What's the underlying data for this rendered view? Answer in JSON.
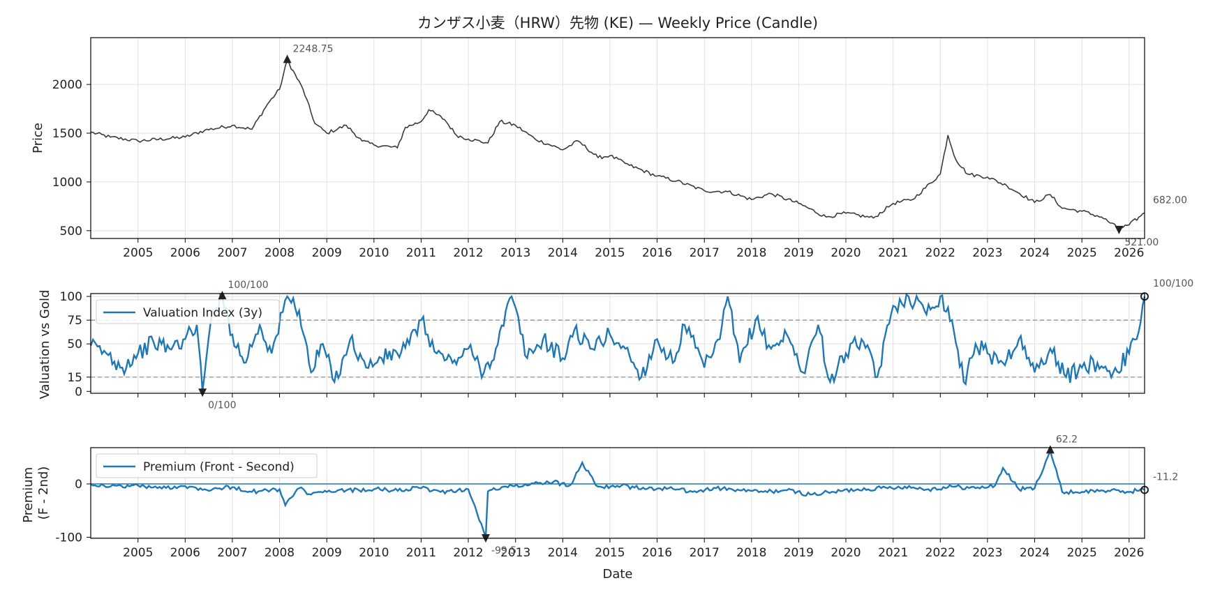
{
  "chart_data": [
    {
      "type": "line",
      "subtype": "candlestick",
      "title": "カンザス小麦（HRW）先物 (KE) — Weekly Price (Candle)",
      "xlabel": "",
      "ylabel": "Price",
      "ylim": [
        420,
        2480
      ],
      "xlim": [
        "2004-01-01",
        "2026-05-01"
      ],
      "y_ticks": [
        "500",
        "1000",
        "1500",
        "2000"
      ],
      "x_ticks": [
        "2005",
        "2006",
        "2007",
        "2008",
        "2009",
        "2010",
        "2011",
        "2012",
        "2013",
        "2014",
        "2015",
        "2016",
        "2017",
        "2018",
        "2019",
        "2020",
        "2021",
        "2022",
        "2023",
        "2024",
        "2025",
        "2026"
      ],
      "grid": true,
      "x": [
        "2004-01-01",
        "2004-06-01",
        "2005-01-01",
        "2006-01-01",
        "2006-06-01",
        "2007-01-01",
        "2007-06-01",
        "2007-10-01",
        "2008-01-01",
        "2008-03-01",
        "2008-07-01",
        "2008-10-01",
        "2009-01-01",
        "2009-06-01",
        "2009-10-01",
        "2010-01-01",
        "2010-07-01",
        "2010-09-01",
        "2011-01-01",
        "2011-03-01",
        "2011-07-01",
        "2011-10-01",
        "2012-01-01",
        "2012-06-01",
        "2012-09-01",
        "2013-01-01",
        "2013-06-01",
        "2014-01-01",
        "2014-05-01",
        "2014-10-01",
        "2015-01-01",
        "2015-06-01",
        "2016-01-01",
        "2016-06-01",
        "2017-01-01",
        "2017-07-01",
        "2018-01-01",
        "2018-06-01",
        "2019-01-01",
        "2019-08-01",
        "2020-01-01",
        "2020-08-01",
        "2021-01-01",
        "2021-06-01",
        "2022-01-01",
        "2022-03-01",
        "2022-05-01",
        "2022-08-01",
        "2023-01-01",
        "2023-06-01",
        "2024-01-01",
        "2024-05-01",
        "2024-08-01",
        "2025-01-01",
        "2025-06-01",
        "2025-10-15",
        "2026-01-01",
        "2026-04-01",
        "2026-05-01"
      ],
      "values": [
        1510,
        1460,
        1420,
        1460,
        1530,
        1580,
        1540,
        1800,
        1950,
        2248.75,
        1950,
        1600,
        1500,
        1580,
        1420,
        1380,
        1350,
        1560,
        1620,
        1740,
        1640,
        1480,
        1440,
        1400,
        1620,
        1580,
        1440,
        1330,
        1420,
        1250,
        1270,
        1170,
        1060,
        1010,
        910,
        900,
        820,
        880,
        780,
        640,
        680,
        630,
        780,
        820,
        1080,
        1480,
        1230,
        1080,
        1050,
        960,
        790,
        870,
        730,
        700,
        640,
        521,
        560,
        650,
        682
      ],
      "annotations": [
        {
          "label": "2248.75",
          "x": "2008-03-01",
          "y": 2248.75,
          "marker": "up-triangle"
        },
        {
          "label": "521.00",
          "x": "2025-10-15",
          "y": 521,
          "marker": "down-triangle"
        },
        {
          "label": "682.00",
          "x": "2026-05-01",
          "y": 682,
          "marker": "none"
        }
      ]
    },
    {
      "type": "line",
      "title": "",
      "xlabel": "",
      "ylabel": "Valuation vs Gold",
      "ylim": [
        -2,
        103
      ],
      "xlim": [
        "2004-01-01",
        "2026-05-01"
      ],
      "y_ticks": [
        "0",
        "15",
        "50",
        "75",
        "100"
      ],
      "reference_lines": [
        15,
        75
      ],
      "legend": {
        "placement": "top-left",
        "entries": [
          "Valuation Index (3y)"
        ]
      },
      "grid": true,
      "series": [
        {
          "name": "Valuation Index (3y)",
          "x": [
            "2004-01-01",
            "2004-05-01",
            "2004-09-01",
            "2005-01-01",
            "2005-05-01",
            "2005-09-01",
            "2006-01-01",
            "2006-04-01",
            "2006-05-15",
            "2006-08-01",
            "2006-10-15",
            "2007-01-01",
            "2007-04-01",
            "2007-08-01",
            "2007-11-01",
            "2008-03-01",
            "2008-06-01",
            "2008-09-01",
            "2008-12-01",
            "2009-03-01",
            "2009-07-01",
            "2009-11-01",
            "2010-03-01",
            "2010-07-01",
            "2010-10-01",
            "2011-01-01",
            "2011-05-01",
            "2011-09-01",
            "2012-01-01",
            "2012-05-01",
            "2012-08-01",
            "2012-12-01",
            "2013-04-01",
            "2013-08-01",
            "2014-01-01",
            "2014-04-01",
            "2014-08-01",
            "2015-01-01",
            "2015-05-01",
            "2015-09-01",
            "2016-01-01",
            "2016-05-01",
            "2016-08-01",
            "2017-01-01",
            "2017-05-01",
            "2017-07-01",
            "2017-10-01",
            "2018-02-01",
            "2018-06-01",
            "2018-10-01",
            "2019-02-01",
            "2019-06-01",
            "2019-09-01",
            "2020-01-01",
            "2020-05-01",
            "2020-09-01",
            "2021-01-01",
            "2021-05-01",
            "2021-09-01",
            "2022-01-01",
            "2022-04-01",
            "2022-07-01",
            "2022-10-01",
            "2023-01-01",
            "2023-05-01",
            "2023-09-01",
            "2024-01-01",
            "2024-05-01",
            "2024-09-01",
            "2025-01-01",
            "2025-05-01",
            "2025-09-01",
            "2026-01-01",
            "2026-03-01",
            "2026-05-01"
          ],
          "values": [
            48,
            40,
            25,
            40,
            52,
            45,
            55,
            70,
            0,
            85,
            100,
            60,
            30,
            70,
            40,
            100,
            85,
            20,
            50,
            10,
            55,
            25,
            35,
            40,
            50,
            75,
            40,
            30,
            45,
            20,
            45,
            100,
            35,
            55,
            35,
            65,
            45,
            60,
            45,
            15,
            55,
            30,
            70,
            25,
            55,
            100,
            30,
            75,
            45,
            60,
            20,
            70,
            10,
            40,
            55,
            15,
            90,
            100,
            85,
            100,
            75,
            10,
            50,
            40,
            30,
            55,
            20,
            45,
            15,
            25,
            30,
            20,
            40,
            55,
            100
          ],
          "color": "#1f77b4"
        }
      ],
      "annotations": [
        {
          "label": "100/100",
          "x": "2006-10-15",
          "y": 100,
          "marker": "up-triangle"
        },
        {
          "label": "0/100",
          "x": "2006-05-15",
          "y": 0,
          "marker": "down-triangle"
        },
        {
          "label": "100/100",
          "x": "2026-05-01",
          "y": 100,
          "marker": "circle"
        }
      ]
    },
    {
      "type": "line",
      "title": "",
      "xlabel": "Date",
      "ylabel": "Premium\n(F - 2nd)",
      "ylabel_lines": [
        "Premium",
        "(F - 2nd)"
      ],
      "ylim": [
        -102,
        68
      ],
      "xlim": [
        "2004-01-01",
        "2026-05-01"
      ],
      "y_ticks": [
        "-100",
        "0"
      ],
      "x_ticks": [
        "2005",
        "2006",
        "2007",
        "2008",
        "2009",
        "2010",
        "2011",
        "2012",
        "2013",
        "2014",
        "2015",
        "2016",
        "2017",
        "2018",
        "2019",
        "2020",
        "2021",
        "2022",
        "2023",
        "2024",
        "2025",
        "2026"
      ],
      "reference_lines": [
        0
      ],
      "legend": {
        "placement": "top-left",
        "entries": [
          "Premium (Front - Second)"
        ]
      },
      "grid": true,
      "series": [
        {
          "name": "Premium (Front - Second)",
          "x": [
            "2004-01-01",
            "2004-06-01",
            "2005-01-01",
            "2005-06-01",
            "2006-01-01",
            "2006-06-01",
            "2007-01-01",
            "2007-06-01",
            "2008-01-01",
            "2008-02-15",
            "2008-06-01",
            "2008-09-01",
            "2009-01-01",
            "2009-06-01",
            "2010-01-01",
            "2010-06-01",
            "2011-01-01",
            "2011-06-01",
            "2012-01-01",
            "2012-05-15",
            "2012-06-01",
            "2012-10-01",
            "2013-04-01",
            "2013-09-01",
            "2014-03-01",
            "2014-06-01",
            "2014-10-01",
            "2015-04-01",
            "2015-10-01",
            "2016-04-01",
            "2016-10-01",
            "2017-04-01",
            "2017-10-01",
            "2018-04-01",
            "2018-10-01",
            "2019-04-01",
            "2019-10-01",
            "2020-04-01",
            "2020-10-01",
            "2021-04-01",
            "2021-10-01",
            "2022-04-01",
            "2022-10-01",
            "2023-03-01",
            "2023-05-01",
            "2023-09-01",
            "2024-01-01",
            "2024-05-01",
            "2024-08-01",
            "2025-01-01",
            "2025-06-01",
            "2026-01-01",
            "2026-04-01",
            "2026-05-01"
          ],
          "values": [
            0,
            -5,
            -3,
            -8,
            -4,
            -10,
            -6,
            -15,
            -10,
            -40,
            -8,
            -20,
            -15,
            -12,
            -10,
            -12,
            -8,
            -15,
            -10,
            -99.5,
            -14,
            -5,
            -3,
            5,
            -2,
            40,
            -5,
            -3,
            -10,
            -8,
            -15,
            -8,
            -12,
            -15,
            -12,
            -20,
            -15,
            -10,
            -8,
            -5,
            -10,
            -5,
            -8,
            -3,
            30,
            -10,
            -8,
            62.2,
            -15,
            -15,
            -12,
            -15,
            -10,
            -11.2
          ],
          "color": "#1f77b4"
        }
      ],
      "annotations": [
        {
          "label": "62.2",
          "x": "2024-05-01",
          "y": 62.2,
          "marker": "up-triangle"
        },
        {
          "label": "-99.5",
          "x": "2012-05-15",
          "y": -99.5,
          "marker": "down-triangle"
        },
        {
          "label": "-11.2",
          "x": "2026-05-01",
          "y": -11.2,
          "marker": "circle"
        }
      ]
    }
  ],
  "colors": {
    "price": "#3a3a3a",
    "series": "#1f77b4",
    "reference": "#999999",
    "grid": "#e0e0e0",
    "marker": "#222222"
  }
}
